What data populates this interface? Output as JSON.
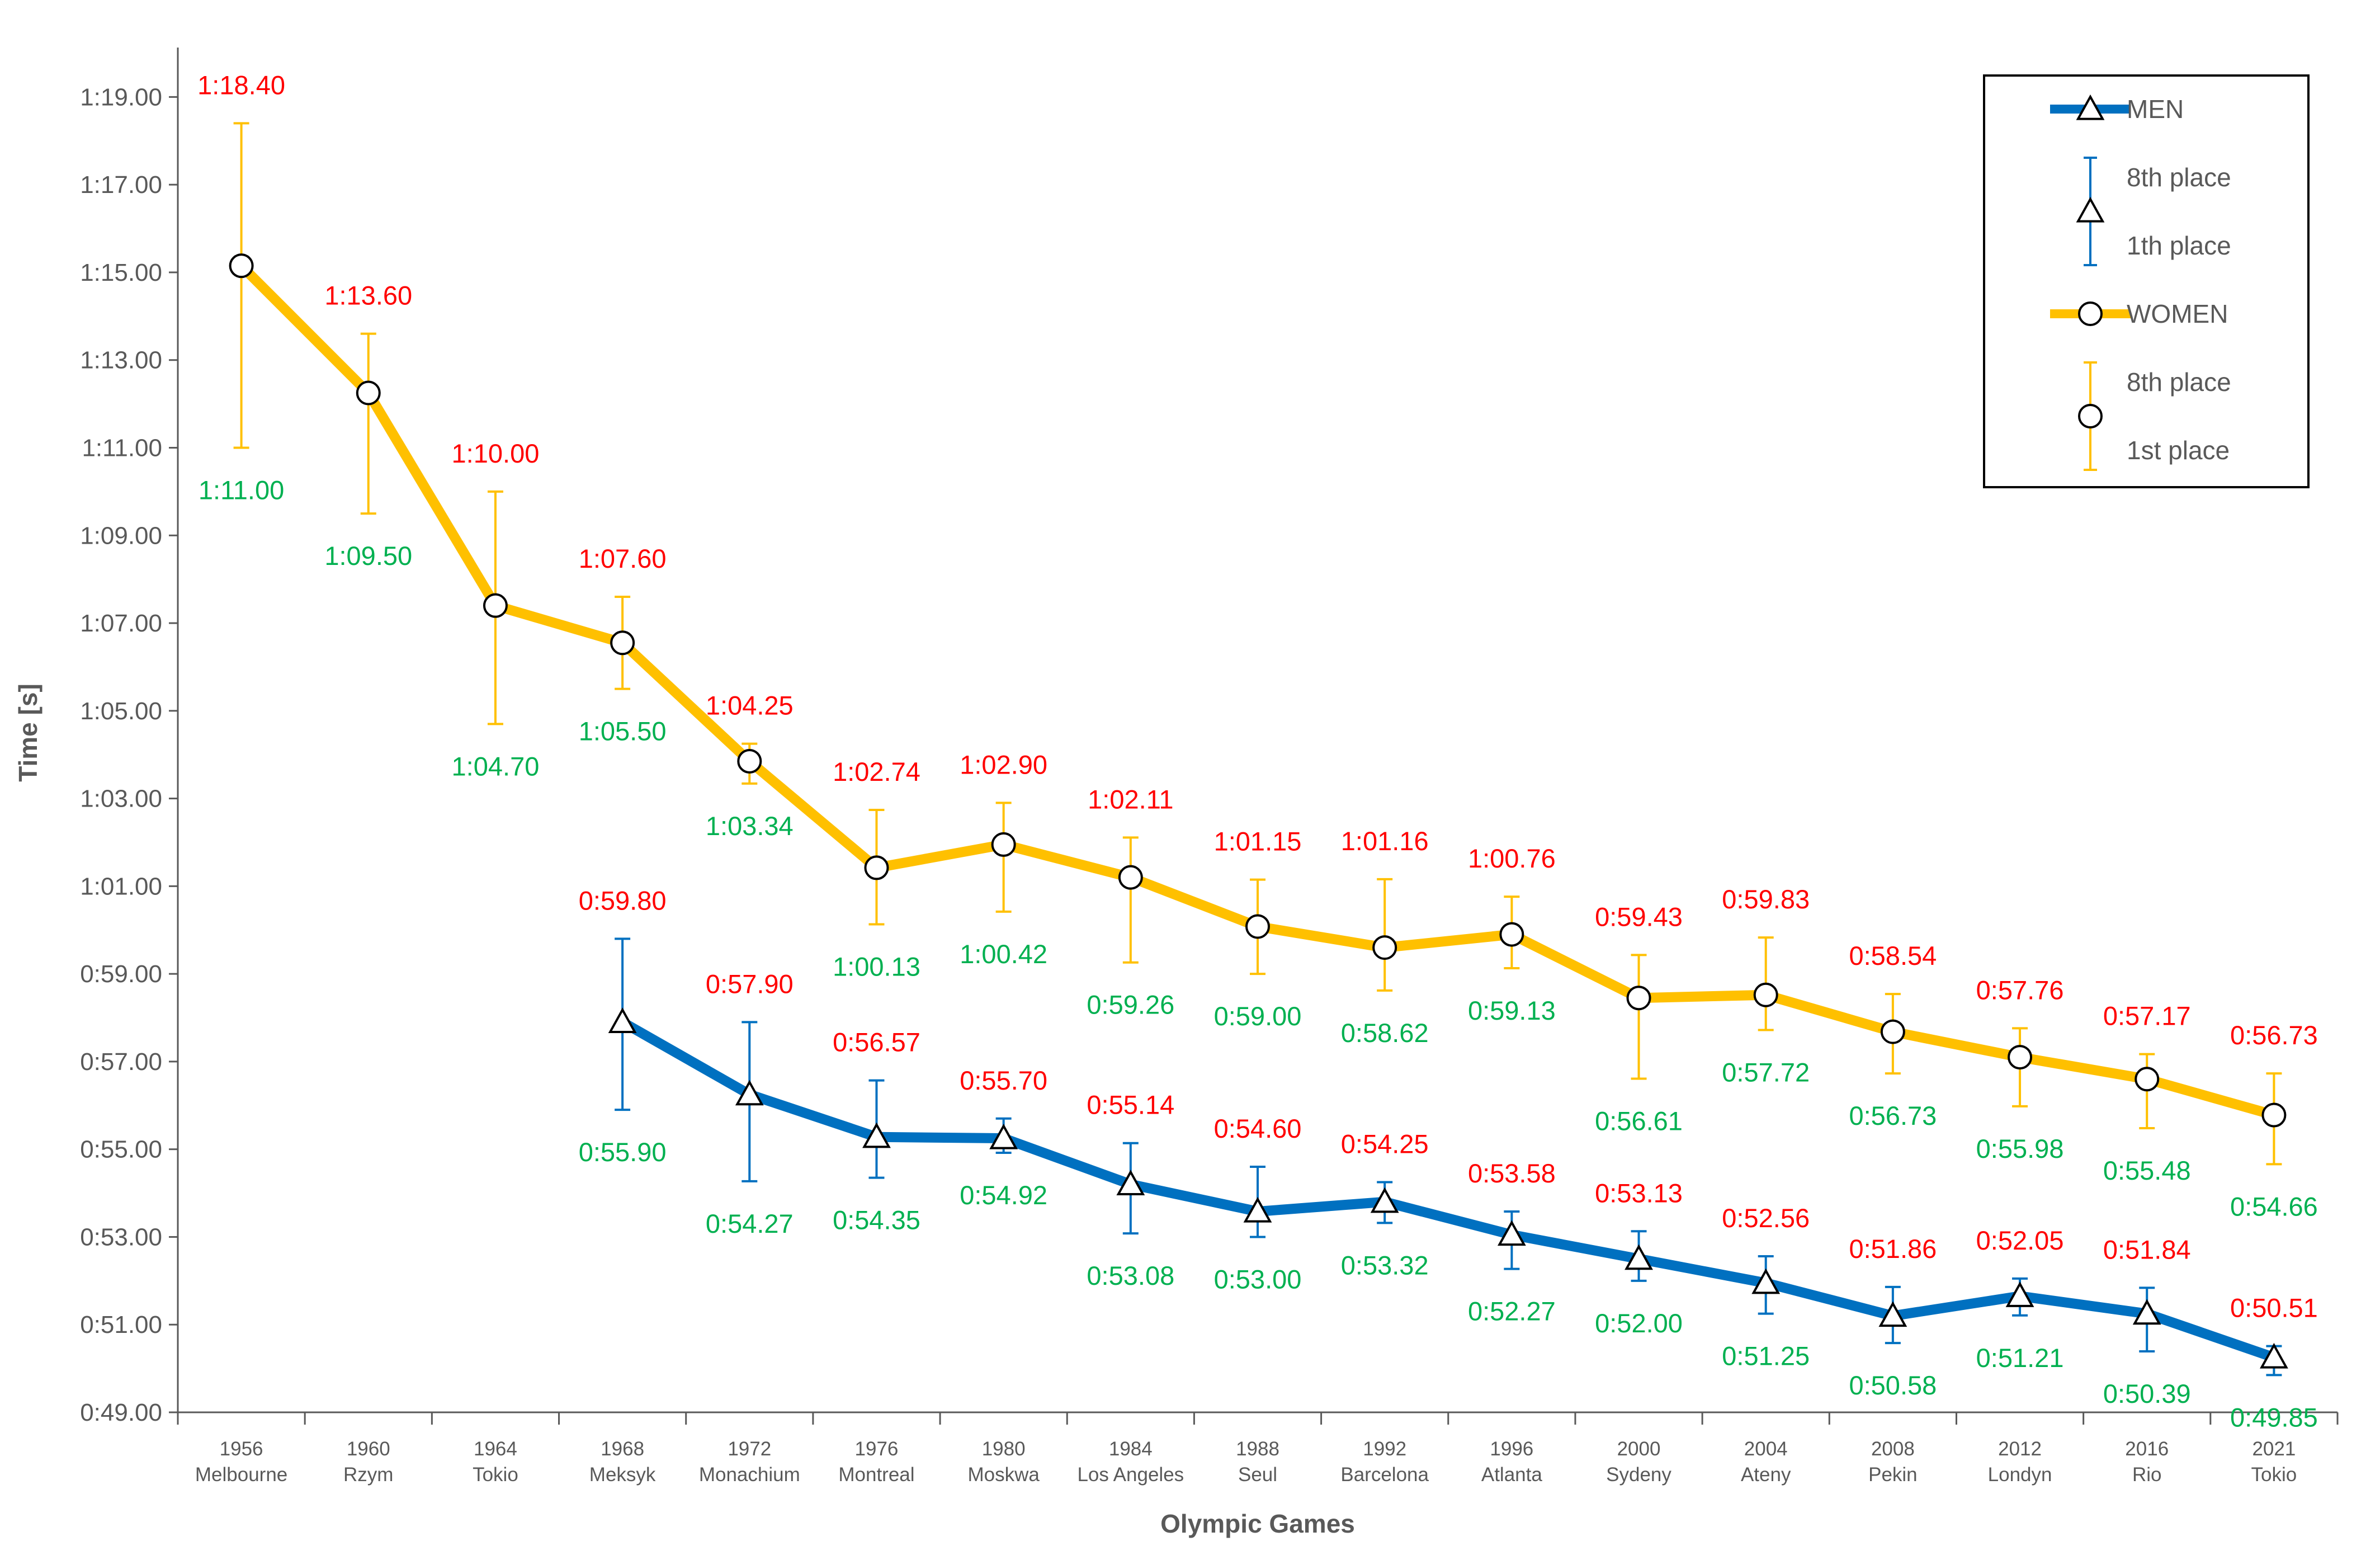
{
  "chart_data": {
    "type": "line",
    "xlabel": "Olympic Games",
    "ylabel": "Time [s]",
    "ylim": [
      49,
      80
    ],
    "yticks": [
      "0:49.00",
      "0:51.00",
      "0:53.00",
      "0:55.00",
      "0:57.00",
      "0:59.00",
      "1:01.00",
      "1:03.00",
      "1:05.00",
      "1:07.00",
      "1:09.00",
      "1:11.00",
      "1:13.00",
      "1:15.00",
      "1:17.00",
      "1:19.00"
    ],
    "categories": [
      {
        "year": "1956",
        "city": "Melbourne"
      },
      {
        "year": "1960",
        "city": "Rzym"
      },
      {
        "year": "1964",
        "city": "Tokio"
      },
      {
        "year": "1968",
        "city": "Meksyk"
      },
      {
        "year": "1972",
        "city": "Monachium"
      },
      {
        "year": "1976",
        "city": "Montreal"
      },
      {
        "year": "1980",
        "city": "Moskwa"
      },
      {
        "year": "1984",
        "city": "Los Angeles"
      },
      {
        "year": "1988",
        "city": "Seul"
      },
      {
        "year": "1992",
        "city": "Barcelona"
      },
      {
        "year": "1996",
        "city": "Atlanta"
      },
      {
        "year": "2000",
        "city": "Sydeny"
      },
      {
        "year": "2004",
        "city": "Ateny"
      },
      {
        "year": "2008",
        "city": "Pekin"
      },
      {
        "year": "2012",
        "city": "Londyn"
      },
      {
        "year": "2016",
        "city": "Rio"
      },
      {
        "year": "2021",
        "city": "Tokio"
      }
    ],
    "series": [
      {
        "name": "WOMEN",
        "color": "#ffc000",
        "marker": "circle",
        "values": [
          75.15,
          72.25,
          67.4,
          66.55,
          63.85,
          61.42,
          61.95,
          61.2,
          60.08,
          59.6,
          59.9,
          58.45,
          58.52,
          57.68,
          57.1,
          56.6,
          55.78
        ],
        "max": [
          78.4,
          73.6,
          70.0,
          67.6,
          64.25,
          62.74,
          62.9,
          62.11,
          61.15,
          61.16,
          60.76,
          59.43,
          59.83,
          58.54,
          57.76,
          57.17,
          56.73
        ],
        "min": [
          71.0,
          69.5,
          64.7,
          65.5,
          63.34,
          60.13,
          60.42,
          59.26,
          59.0,
          58.62,
          59.13,
          56.61,
          57.72,
          56.73,
          55.98,
          55.48,
          54.66
        ],
        "max_labels": [
          "1:18.40",
          "1:13.60",
          "1:10.00",
          "1:07.60",
          "1:04.25",
          "1:02.74",
          "1:02.90",
          "1:02.11",
          "1:01.15",
          "1:01.16",
          "1:00.76",
          "0:59.43",
          "0:59.83",
          "0:58.54",
          "0:57.76",
          "0:57.17",
          "0:56.73"
        ],
        "min_labels": [
          "1:11.00",
          "1:09.50",
          "1:04.70",
          "1:05.50",
          "1:03.34",
          "1:00.13",
          "1:00.42",
          "0:59.26",
          "0:59.00",
          "0:58.62",
          "0:59.13",
          "0:56.61",
          "0:57.72",
          "0:56.73",
          "0:55.98",
          "0:55.48",
          "0:54.66"
        ]
      },
      {
        "name": "MEN",
        "color": "#0070c0",
        "marker": "triangle",
        "values": [
          null,
          null,
          null,
          57.9,
          56.25,
          55.28,
          55.25,
          54.2,
          53.58,
          53.8,
          53.05,
          52.5,
          51.95,
          51.2,
          51.65,
          51.25,
          50.25
        ],
        "max": [
          null,
          null,
          null,
          59.8,
          57.9,
          56.57,
          55.7,
          55.14,
          54.6,
          54.25,
          53.58,
          53.13,
          52.56,
          51.86,
          52.05,
          51.84,
          50.51
        ],
        "min": [
          null,
          null,
          null,
          55.9,
          54.27,
          54.35,
          54.92,
          53.08,
          53.0,
          53.32,
          52.27,
          52.0,
          51.25,
          50.58,
          51.21,
          50.39,
          49.85
        ],
        "max_labels": [
          null,
          null,
          null,
          "0:59.80",
          "0:57.90",
          "0:56.57",
          "0:55.70",
          "0:55.14",
          "0:54.60",
          "0:54.25",
          "0:53.58",
          "0:53.13",
          "0:52.56",
          "0:51.86",
          "0:52.05",
          "0:51.84",
          "0:50.51"
        ],
        "min_labels": [
          null,
          null,
          null,
          "0:55.90",
          "0:54.27",
          "0:54.35",
          "0:54.92",
          "0:53.08",
          "0:53.00",
          "0:53.32",
          "0:52.27",
          "0:52.00",
          "0:51.25",
          "0:50.58",
          "0:51.21",
          "0:50.39",
          "0:49.85"
        ]
      }
    ],
    "legend": {
      "placement": "top-right",
      "entries": [
        {
          "label": "MEN",
          "kind": "line",
          "series": "MEN"
        },
        {
          "label": "8th place",
          "kind": "errorbar-top",
          "series": "MEN"
        },
        {
          "label": "1th place",
          "kind": "errorbar-bottom",
          "series": "MEN"
        },
        {
          "label": "WOMEN",
          "kind": "line",
          "series": "WOMEN"
        },
        {
          "label": "8th place",
          "kind": "errorbar-top",
          "series": "WOMEN"
        },
        {
          "label": "1st place",
          "kind": "errorbar-bottom",
          "series": "WOMEN"
        }
      ]
    },
    "colors": {
      "max_label": "#ff0000",
      "min_label": "#00b050",
      "axis": "#595959"
    },
    "grid": false
  }
}
